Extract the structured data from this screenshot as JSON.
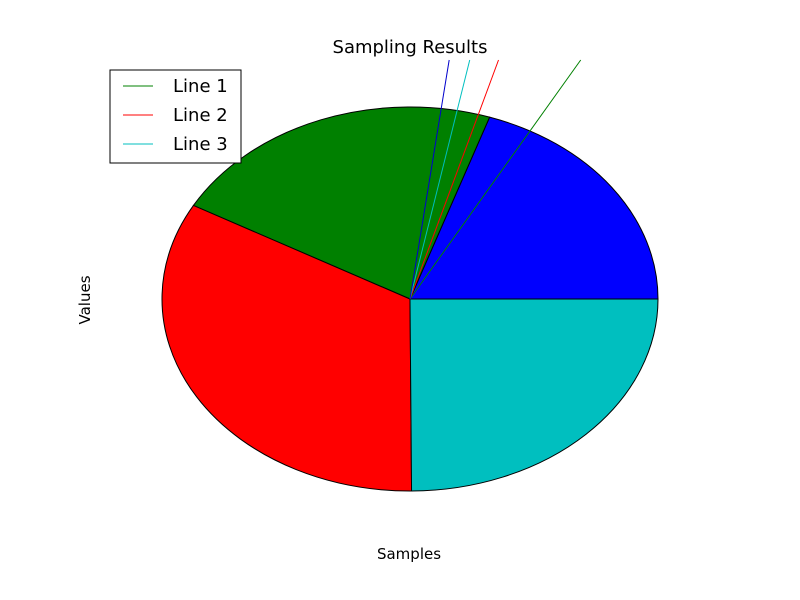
{
  "chart_data": {
    "type": "pie",
    "title": "Sampling Results",
    "xlabel": "Samples",
    "ylabel": "Values",
    "slices": [
      {
        "value": 0.198,
        "color": "#0000ff"
      },
      {
        "value": 0.221,
        "color": "#008000"
      },
      {
        "value": 0.332,
        "color": "#ff0000"
      },
      {
        "value": 0.249,
        "color": "#00bfbf"
      }
    ],
    "lines": [
      {
        "name": "Line 1",
        "color": "#008000",
        "slope": 1.4
      },
      {
        "name": "Line 2",
        "color": "#ff0000",
        "slope": 2.7
      },
      {
        "name": "Line 3",
        "color": "#00bfbf",
        "slope": 4.0
      },
      {
        "name": "",
        "color": "#0000cc",
        "slope": 6.1
      }
    ],
    "legend": {
      "placement": "upper-left",
      "entries": [
        {
          "label": "Line 1",
          "color": "#008000"
        },
        {
          "label": "Line 2",
          "color": "#ff0000"
        },
        {
          "label": "Line 3",
          "color": "#00bfbf"
        }
      ]
    },
    "grid": false
  }
}
